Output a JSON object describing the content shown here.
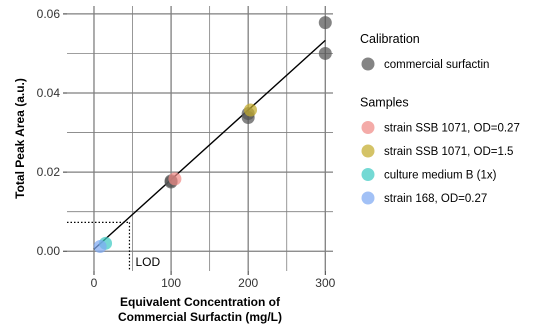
{
  "chart_data": {
    "type": "scatter",
    "xlabel_lines": [
      "Equivalent Concentration of",
      "Commercial Surfactin (mg/L)"
    ],
    "ylabel": "Total Peak Area (a.u.)",
    "xlim": [
      -35,
      310
    ],
    "ylim": [
      -0.005,
      0.062
    ],
    "x_ticks": [
      0,
      100,
      200,
      300
    ],
    "y_ticks": [
      0.0,
      0.02,
      0.04,
      0.06
    ],
    "x_tick_labels": [
      "0",
      "100",
      "200",
      "300"
    ],
    "y_tick_labels": [
      "0.00",
      "0.02",
      "0.04",
      "0.06"
    ],
    "x_minor_ticks": [
      -50,
      50,
      150,
      250
    ],
    "y_minor_ticks": [
      0.01,
      0.03,
      0.05
    ],
    "grid": true,
    "background": "#ffffff",
    "grid_color": "#7f7f7f",
    "fit_line": {
      "x": [
        0,
        300
      ],
      "y": [
        0.0005,
        0.0533
      ],
      "color": "#000000"
    },
    "lod": {
      "label": "LOD",
      "x": 46,
      "y": 0.0073,
      "line_style": "dotted"
    },
    "legend": {
      "position": "right",
      "groups": [
        {
          "title": "Calibration",
          "entries": [
            {
              "label": "commercial surfactin",
              "color": "#555555"
            }
          ]
        },
        {
          "title": "Samples",
          "entries": [
            {
              "label": "strain SSB 1071, OD=0.27",
              "color": "#f08b86"
            },
            {
              "label": "strain SSB 1071, OD=1.5",
              "color": "#c4ac2c"
            },
            {
              "label": "culture medium B (1x)",
              "color": "#3fcbc4"
            },
            {
              "label": "strain 168, OD=0.27",
              "color": "#7ea9f2"
            }
          ]
        }
      ]
    },
    "series": [
      {
        "name": "commercial surfactin",
        "color": "#555555",
        "x": [
          100,
          100,
          200,
          200,
          300,
          300
        ],
        "y": [
          0.0175,
          0.0178,
          0.0338,
          0.0348,
          0.0578,
          0.05
        ]
      },
      {
        "name": "strain SSB 1071, OD=0.27",
        "color": "#f08b86",
        "x": [
          105
        ],
        "y": [
          0.0183
        ]
      },
      {
        "name": "strain SSB 1071, OD=1.5",
        "color": "#c4ac2c",
        "x": [
          203
        ],
        "y": [
          0.0357
        ]
      },
      {
        "name": "culture medium B (1x)",
        "color": "#3fcbc4",
        "x": [
          15
        ],
        "y": [
          0.002
        ]
      },
      {
        "name": "strain 168, OD=0.27",
        "color": "#7ea9f2",
        "x": [
          8
        ],
        "y": [
          0.0012
        ]
      }
    ]
  }
}
